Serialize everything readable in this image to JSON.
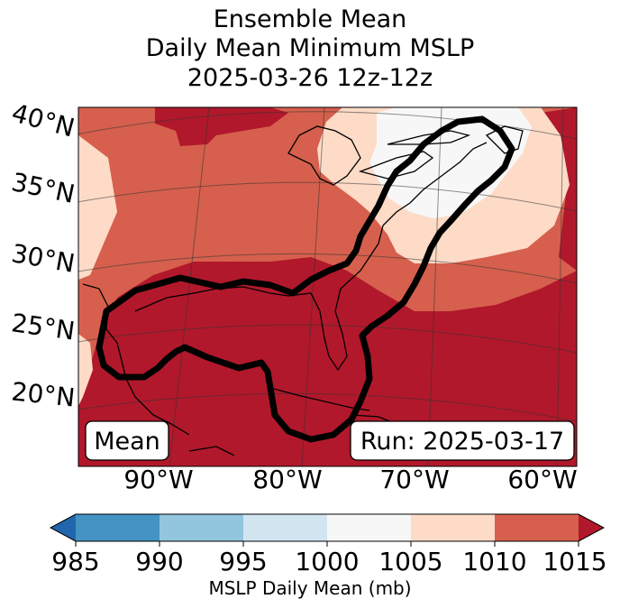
{
  "title": {
    "line1": "Ensemble Mean",
    "line2": "Daily Mean Minimum MSLP",
    "line3": "2025-03-26 12z-12z"
  },
  "map": {
    "lat_labels": [
      "40°N",
      "35°N",
      "30°N",
      "25°N",
      "20°N"
    ],
    "lon_labels": [
      "90°W",
      "80°W",
      "70°W",
      "60°W"
    ],
    "annotation_left": "Mean",
    "annotation_right": "Run: 2025-03-17",
    "colors": {
      "c1015": "#b2182b",
      "c1010": "#d6604d",
      "c1005": "#fddbc7",
      "c1000": "#f7f7f7"
    }
  },
  "colorbar": {
    "label": "MSLP Daily Mean (mb)",
    "ticks": [
      "985",
      "990",
      "995",
      "1000",
      "1005",
      "1010",
      "1015"
    ],
    "bins": [
      {
        "range": "<985",
        "color": "#2166ac"
      },
      {
        "range": "985-990",
        "color": "#4393c3"
      },
      {
        "range": "990-995",
        "color": "#92c5de"
      },
      {
        "range": "995-1000",
        "color": "#d1e5f0"
      },
      {
        "range": "1000-1005",
        "color": "#f7f7f7"
      },
      {
        "range": "1005-1010",
        "color": "#fddbc7"
      },
      {
        "range": "1010-1015",
        "color": "#d6604d"
      },
      {
        "range": ">1015",
        "color": "#b2182b"
      }
    ]
  }
}
